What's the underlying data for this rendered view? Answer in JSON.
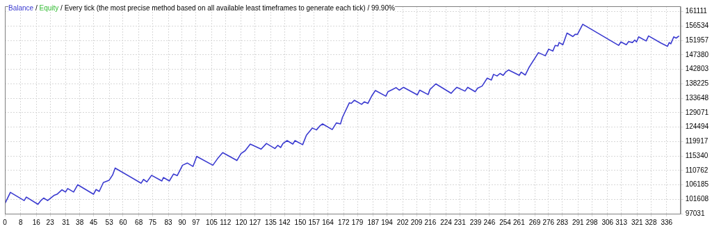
{
  "chart_data": {
    "type": "line",
    "subtitle": "Every tick (the most precise method based on all available least timeframes to generate each tick) / 99.90%",
    "annotations": [
      "/",
      "/"
    ],
    "x": [
      0,
      2.8,
      9.8,
      10.9,
      16.8,
      18.3,
      19.7,
      21.7,
      24.9,
      26.5,
      29.0,
      30.8,
      31.9,
      34.9,
      37.0,
      45.0,
      46.3,
      47.9,
      50.0,
      52.9,
      54.7,
      56.0,
      69.2,
      70.4,
      72.1,
      74.5,
      79.7,
      80.5,
      83.5,
      85.6,
      87.5,
      90.2,
      92.6,
      95.5,
      97.4,
      105.6,
      108.0,
      110.6,
      117.8,
      119.9,
      122.0,
      124.6,
      130.1,
      132.8,
      137.1,
      138.6,
      140.0,
      141.2,
      143.3,
      146.2,
      147.3,
      151.2,
      153.1,
      156.1,
      158.2,
      159.8,
      161.3,
      166.2,
      168.3,
      170.4,
      171.4,
      174.9,
      175.9,
      177.4,
      181.1,
      182.5,
      184.3,
      186.4,
      188.1,
      193.4,
      194.5,
      196.5,
      198.6,
      200.3,
      202.4,
      209.4,
      210.6,
      214.9,
      215.8,
      218.8,
      226.6,
      228.0,
      229.5,
      233.6,
      235.0,
      238.8,
      240.0,
      242.3,
      244.9,
      247.0,
      248.1,
      249.9,
      251.4,
      253.0,
      254.2,
      255.7,
      261.2,
      262.1,
      264.2,
      266.2,
      270.9,
      274.4,
      276.1,
      278.2,
      279.4,
      280.8,
      281.4,
      283.3,
      285.4,
      288.4,
      289.5,
      290.7,
      293.4,
      311.6,
      312.8,
      315.5,
      316.7,
      318.6,
      319.8,
      320.7,
      321.8,
      325.6,
      326.8,
      333.2,
      336.4,
      337.3,
      338.1,
      339.6,
      340.8,
      342.3
    ],
    "series": [
      {
        "name": "Balance",
        "color": "#3a3ad0",
        "values": [
          100200,
          103800,
          101200,
          102300,
          100000,
          101200,
          102000,
          101200,
          102800,
          103200,
          104600,
          103900,
          105000,
          103900,
          106200,
          103200,
          104700,
          104100,
          106900,
          107600,
          109300,
          111500,
          106700,
          107900,
          107100,
          109200,
          107400,
          108500,
          107400,
          109600,
          109100,
          112400,
          113100,
          112000,
          115200,
          112400,
          114500,
          116400,
          113900,
          116100,
          117000,
          119100,
          117500,
          119300,
          117700,
          118700,
          118000,
          119300,
          120200,
          119100,
          120200,
          118900,
          121900,
          124200,
          123600,
          124800,
          125500,
          123700,
          125800,
          125500,
          127600,
          132200,
          132000,
          133000,
          131700,
          132500,
          132000,
          134500,
          136100,
          134300,
          135700,
          136300,
          137000,
          136200,
          137100,
          134700,
          136200,
          134800,
          136400,
          138200,
          135200,
          136200,
          137100,
          135900,
          137100,
          135700,
          136800,
          137500,
          140000,
          139400,
          141200,
          140700,
          141500,
          140900,
          141900,
          142600,
          140900,
          141900,
          141000,
          143500,
          148100,
          147100,
          149200,
          148600,
          150400,
          150200,
          151300,
          150600,
          154300,
          153200,
          153900,
          153900,
          157100,
          150400,
          151500,
          150600,
          151600,
          151300,
          152100,
          151500,
          153100,
          151800,
          153400,
          151100,
          150100,
          151300,
          150900,
          153100,
          152700,
          153400
        ]
      },
      {
        "name": "Equity",
        "color": "#33bb33",
        "values": [
          null,
          null,
          null,
          null,
          null,
          null,
          null,
          null,
          null,
          null,
          null,
          null,
          null,
          null,
          null,
          null,
          null,
          null,
          null,
          null,
          null,
          null,
          null,
          null,
          null,
          null,
          null,
          null,
          null,
          null,
          null,
          null,
          null,
          null,
          null,
          null,
          null,
          null,
          null,
          null,
          null,
          null,
          null,
          null,
          null,
          null,
          null,
          null,
          null,
          null,
          null,
          null,
          null,
          null,
          null,
          null,
          null,
          null,
          null,
          null,
          null,
          null,
          null,
          null,
          null,
          null,
          null,
          null,
          null,
          null,
          null,
          null,
          null,
          null,
          null,
          null,
          null,
          null,
          null,
          null,
          null,
          null,
          null,
          null,
          null,
          null,
          null,
          null,
          null,
          null,
          null,
          null,
          null,
          null,
          null,
          null,
          null,
          null,
          null,
          null,
          null,
          null,
          null,
          null,
          null,
          null,
          null,
          null,
          null,
          null,
          null,
          null,
          null,
          null,
          null,
          null,
          null,
          null,
          null,
          null,
          null,
          null,
          null,
          null,
          null,
          null,
          null,
          null,
          null,
          null
        ]
      }
    ],
    "xlim": [
      0,
      343
    ],
    "xticks": [
      0,
      8,
      16,
      23,
      31,
      38,
      45,
      53,
      60,
      68,
      75,
      83,
      90,
      97,
      105,
      112,
      120,
      127,
      135,
      142,
      150,
      157,
      164,
      172,
      179,
      187,
      194,
      202,
      209,
      216,
      224,
      231,
      239,
      246,
      254,
      261,
      269,
      276,
      283,
      291,
      298,
      306,
      313,
      321,
      328,
      336
    ],
    "ylim": [
      97031,
      162800
    ],
    "yticks": [
      97031,
      101608,
      106185,
      110762,
      115340,
      119917,
      124494,
      129071,
      133648,
      138225,
      142803,
      147380,
      151957,
      156534,
      161111
    ],
    "grid": true,
    "legend": "top left",
    "marker": "none",
    "line_style": "solid"
  }
}
